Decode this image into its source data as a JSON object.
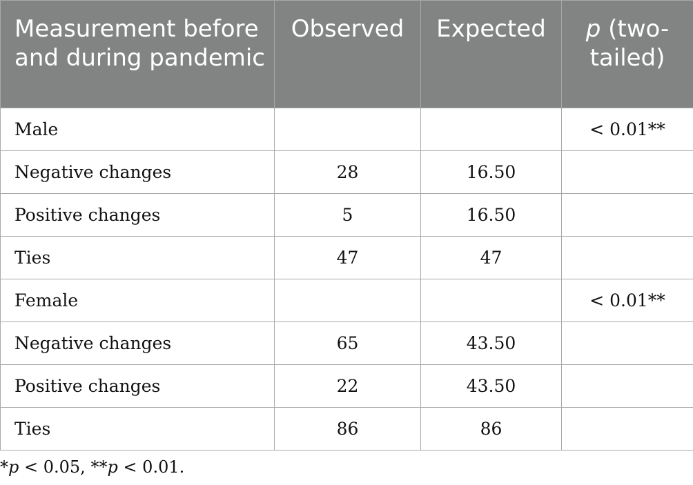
{
  "table": {
    "headers": {
      "measurement": "Measurement before and during pandemic",
      "observed": "Observed",
      "expected": "Expected",
      "p_symbol": "p",
      "p_rest": "(two-tailed)"
    },
    "rows": [
      {
        "label": "Male",
        "observed": "",
        "expected": "",
        "p": "< 0.01**"
      },
      {
        "label": "Negative changes",
        "observed": "28",
        "expected": "16.50",
        "p": ""
      },
      {
        "label": "Positive changes",
        "observed": "5",
        "expected": "16.50",
        "p": ""
      },
      {
        "label": "Ties",
        "observed": "47",
        "expected": "47",
        "p": ""
      },
      {
        "label": "Female",
        "observed": "",
        "expected": "",
        "p": "< 0.01**"
      },
      {
        "label": "Negative changes",
        "observed": "65",
        "expected": "43.50",
        "p": ""
      },
      {
        "label": "Positive changes",
        "observed": "22",
        "expected": "43.50",
        "p": ""
      },
      {
        "label": "Ties",
        "observed": "86",
        "expected": "86",
        "p": ""
      }
    ]
  },
  "footnote": {
    "star1": "*",
    "p1": "p",
    "cond1": " < 0.05, **",
    "p2": "p",
    "cond2": " < 0.01."
  },
  "colors": {
    "header_bg": "#828483",
    "header_text": "#ffffff",
    "border": "#a7a9a8"
  }
}
